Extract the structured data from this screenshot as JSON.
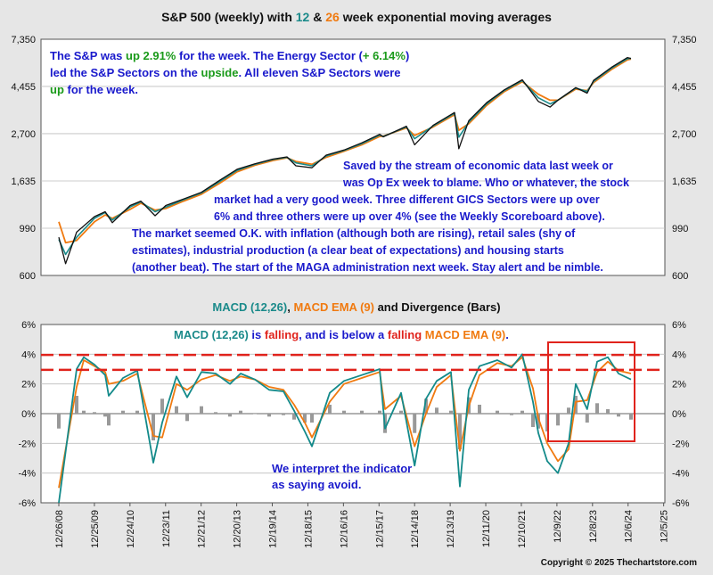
{
  "title": {
    "prefix": "S&P 500 (weekly) with ",
    "p12": "12",
    "amp": " & ",
    "p26": "26",
    "suffix": " week exponential moving averages",
    "color12": "#1a8a8a",
    "color26": "#f07a10"
  },
  "colors": {
    "background": "#e6e6e6",
    "panel": "#ffffff",
    "price": "#111111",
    "ema12": "#1a8a8a",
    "ema26": "#f07a10",
    "macd": "#138a8a",
    "signal": "#f07a10",
    "histogram": "#999999",
    "reference": "#e0231c",
    "blue_text": "#1a1acc",
    "green_text": "#1a9a1a",
    "red_text": "#e0231c"
  },
  "annotations": {
    "summary": {
      "p1": "The S&P was ",
      "up1": "up 2.91%",
      "p2": " for the week. The Energy Sector (",
      "energy": "+ 6.14%",
      "p3": ")",
      "p4": "led the S&P Sectors on the ",
      "upside": "upside",
      "p5": ".  All eleven S&P Sectors were",
      "up2": "up",
      "p6": " for the week."
    },
    "commentary": [
      "Saved by the stream of economic data last week or",
      "was Op Ex week to blame.  Who or whatever, the stock",
      "market had a very good week.  Three different GICS Sectors were up over",
      "6% and three others were up over 4% (see the Weekly Scoreboard above).",
      "The market seemed O.K. with inflation (although both are rising), retail sales (shy of",
      "estimates), industrial production (a clear beat of expectations) and housing starts",
      "(another beat).  The start of the MAGA administration next week. Stay alert and be nimble."
    ],
    "macd_status": {
      "a": "MACD (12,26)",
      "b": " is ",
      "c": "falling",
      "d": ", and is below a ",
      "e": "falling",
      "f": " MACD EMA (9)",
      "g": "."
    },
    "interpret": [
      "We interpret the indicator",
      "as saying avoid."
    ]
  },
  "macd_title": {
    "a": "MACD (12,26)",
    "b": ", ",
    "c": "MACD EMA (9)",
    "d": " and Divergence (Bars)"
  },
  "copyright": "Copyright © 2025 Thechartstore.com",
  "chart_data": [
    {
      "type": "line",
      "title": "S&P 500 (weekly) with 12 & 26 week exponential moving averages",
      "y_scale": "log",
      "y_ticks": [
        600,
        990,
        1635,
        2700,
        4455,
        7350
      ],
      "y_tick_labels": [
        "600",
        "990",
        "1,635",
        "2,700",
        "4,455",
        "7,350"
      ],
      "ylim": [
        600,
        7350
      ],
      "x_ticks": [
        "12/26/08",
        "12/25/09",
        "12/24/10",
        "12/23/11",
        "12/21/12",
        "12/20/13",
        "12/19/14",
        "12/18/15",
        "12/16/16",
        "12/15/17",
        "12/14/18",
        "12/13/19",
        "12/11/20",
        "12/10/21",
        "12/9/22",
        "12/8/23",
        "12/6/24",
        "12/5/25"
      ],
      "grid": "horizontal",
      "x_decimal_years": [
        2009.0,
        2009.19,
        2009.5,
        2010.0,
        2010.3,
        2010.5,
        2011.0,
        2011.3,
        2011.7,
        2012.0,
        2012.5,
        2013.0,
        2013.5,
        2014.0,
        2014.5,
        2015.0,
        2015.4,
        2015.65,
        2016.1,
        2016.5,
        2017.0,
        2017.5,
        2018.0,
        2018.1,
        2018.75,
        2018.98,
        2019.5,
        2020.1,
        2020.22,
        2020.5,
        2021.0,
        2021.5,
        2022.0,
        2022.45,
        2022.78,
        2023.0,
        2023.5,
        2023.82,
        2024.0,
        2024.5,
        2024.95,
        2025.05
      ],
      "series": [
        {
          "name": "S&P 500",
          "values": [
            900,
            680,
            950,
            1120,
            1180,
            1050,
            1260,
            1320,
            1130,
            1260,
            1350,
            1450,
            1640,
            1850,
            1960,
            2060,
            2110,
            1920,
            1880,
            2150,
            2270,
            2450,
            2680,
            2610,
            2920,
            2400,
            2950,
            3380,
            2300,
            3100,
            3750,
            4300,
            4780,
            3800,
            3580,
            3850,
            4400,
            4150,
            4750,
            5450,
            6050,
            5990
          ]
        },
        {
          "name": "12 week EMA",
          "values": [
            880,
            750,
            900,
            1100,
            1170,
            1080,
            1240,
            1310,
            1180,
            1240,
            1340,
            1440,
            1620,
            1830,
            1950,
            2050,
            2100,
            1980,
            1920,
            2130,
            2260,
            2430,
            2660,
            2620,
            2900,
            2560,
            2930,
            3350,
            2600,
            3050,
            3700,
            4270,
            4740,
            3950,
            3700,
            3850,
            4380,
            4220,
            4700,
            5400,
            5980,
            5990
          ]
        },
        {
          "name": "26 week EMA",
          "values": [
            1060,
            850,
            870,
            1060,
            1140,
            1100,
            1210,
            1290,
            1200,
            1220,
            1320,
            1420,
            1590,
            1800,
            1930,
            2030,
            2090,
            2010,
            1950,
            2100,
            2240,
            2400,
            2620,
            2630,
            2870,
            2650,
            2900,
            3300,
            2800,
            3000,
            3640,
            4220,
            4680,
            4100,
            3850,
            3850,
            4330,
            4260,
            4640,
            5330,
            5910,
            5960
          ]
        }
      ]
    },
    {
      "type": "line",
      "title": "MACD (12,26), MACD EMA (9) and Divergence (Bars)",
      "y_unit": "%",
      "ylim": [
        -6,
        6
      ],
      "y_ticks": [
        -6,
        -4,
        -2,
        0,
        2,
        4,
        6
      ],
      "y_tick_labels": [
        "-6%",
        "-4%",
        "-2%",
        "0%",
        "2%",
        "4%",
        "6%"
      ],
      "reference_lines": [
        3.95,
        2.95
      ],
      "x_decimal_years": [
        2009.0,
        2009.5,
        2009.7,
        2010.0,
        2010.3,
        2010.4,
        2010.8,
        2011.2,
        2011.65,
        2011.9,
        2012.3,
        2012.6,
        2013.0,
        2013.4,
        2013.8,
        2014.1,
        2014.5,
        2014.9,
        2015.3,
        2015.6,
        2015.9,
        2016.1,
        2016.6,
        2017.0,
        2017.5,
        2018.0,
        2018.15,
        2018.6,
        2018.98,
        2019.3,
        2019.6,
        2020.0,
        2020.25,
        2020.5,
        2020.8,
        2021.3,
        2021.7,
        2022.0,
        2022.3,
        2022.45,
        2022.7,
        2023.0,
        2023.3,
        2023.5,
        2023.82,
        2024.1,
        2024.4,
        2024.7,
        2025.05
      ],
      "series": [
        {
          "name": "MACD (12,26)",
          "values": [
            -6.0,
            3.0,
            3.8,
            3.3,
            2.6,
            1.2,
            2.4,
            2.9,
            -3.3,
            -0.6,
            2.5,
            1.1,
            2.8,
            2.7,
            2.0,
            2.7,
            2.3,
            1.6,
            1.5,
            0.2,
            -1.2,
            -2.2,
            1.4,
            2.2,
            2.6,
            3.0,
            -1.0,
            1.4,
            -3.5,
            1.0,
            2.2,
            2.8,
            -4.9,
            1.6,
            3.2,
            3.6,
            3.1,
            4.0,
            0.8,
            -1.3,
            -3.2,
            -4.0,
            -2.0,
            2.0,
            0.3,
            3.5,
            3.8,
            2.7,
            2.3
          ]
        },
        {
          "name": "MACD EMA (9)",
          "values": [
            -5.0,
            1.8,
            3.6,
            3.2,
            2.8,
            2.0,
            2.2,
            2.7,
            -1.5,
            -1.6,
            2.0,
            1.6,
            2.3,
            2.6,
            2.2,
            2.5,
            2.3,
            1.8,
            1.6,
            0.6,
            -0.6,
            -1.6,
            0.8,
            2.0,
            2.4,
            2.8,
            0.3,
            1.2,
            -2.2,
            0.0,
            1.8,
            2.6,
            -2.5,
            0.5,
            2.6,
            3.4,
            3.2,
            3.8,
            1.7,
            -0.3,
            -2.0,
            -3.2,
            -2.4,
            0.8,
            0.9,
            2.8,
            3.5,
            2.9,
            2.7
          ]
        },
        {
          "name": "Divergence (Bars)",
          "values": [
            -1.0,
            1.2,
            0.2,
            0.1,
            -0.2,
            -0.8,
            0.2,
            0.2,
            -1.8,
            1.0,
            0.5,
            -0.5,
            0.5,
            0.1,
            -0.2,
            0.2,
            0.0,
            -0.2,
            -0.1,
            -0.4,
            -0.6,
            -0.6,
            0.6,
            0.2,
            0.2,
            0.2,
            -1.3,
            0.2,
            -1.3,
            1.0,
            0.4,
            0.2,
            -2.4,
            1.1,
            0.6,
            0.2,
            -0.1,
            0.2,
            -0.9,
            -1.0,
            -1.2,
            -0.8,
            0.4,
            1.2,
            -0.6,
            0.7,
            0.3,
            -0.2,
            -0.4
          ]
        }
      ]
    }
  ]
}
